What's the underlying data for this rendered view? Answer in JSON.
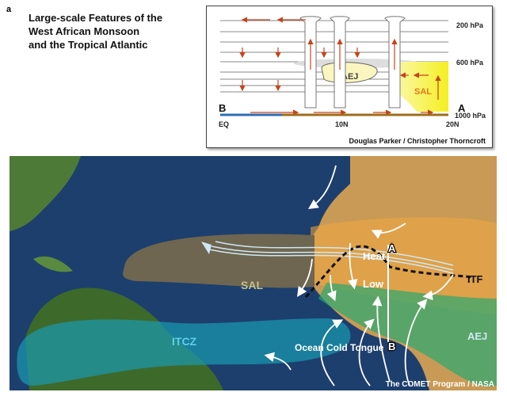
{
  "panel_letter": "a",
  "title": [
    "Large-scale Features of the",
    "West African Monsoon",
    "and the Tropical Atlantic"
  ],
  "cross_section": {
    "levels": [
      "200 hPa",
      "600 hPa",
      "1000 hPa"
    ],
    "latitudes": [
      "EQ",
      "10N",
      "20N"
    ],
    "end_labels": {
      "left": "B",
      "right": "A"
    },
    "features": {
      "jet": "AEJ",
      "sal": "SAL"
    },
    "credit": "Douglas Parker / Christopher Thorncroft"
  },
  "map": {
    "labels": {
      "sal": "SAL",
      "itcz": "ITCZ",
      "heat": "Heat",
      "low": "Low",
      "itf": "ITF",
      "aej": "AEJ",
      "ocean_cold_tongue": "Ocean Cold Tongue",
      "point_a": "A",
      "point_b": "B"
    },
    "credit": "The COMET Program / NASA"
  },
  "colors": {
    "ocean": "#1d3f6e",
    "sal": "#6e6650",
    "itcz": "#1a87a8",
    "arrow": "#c8421a",
    "sal_yellow": "#f7f250"
  }
}
